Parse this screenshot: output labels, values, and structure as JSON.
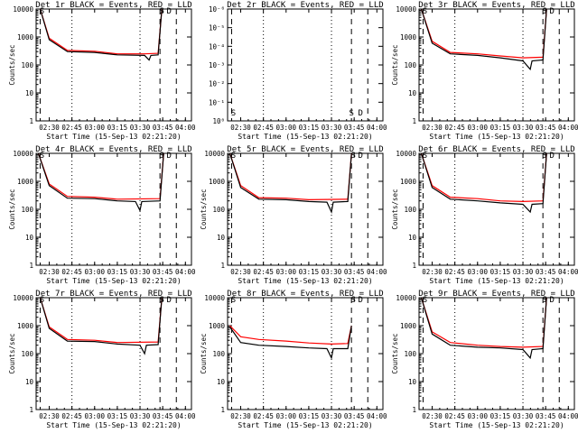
{
  "common": {
    "xlabel": "Start Time (15-Sep-13 02:21:20)",
    "ylabel": "Counts/sec",
    "xtick_labels": [
      "02:30",
      "02:45",
      "03:00",
      "03:15",
      "03:30",
      "03:45",
      "04:00"
    ],
    "ytick_labels_normal": [
      "1",
      "10",
      "100",
      "1000",
      "10000"
    ],
    "ytick_labels_det2": [
      "10⁰",
      "10⁻¹",
      "10⁻²",
      "10⁻³",
      "10⁻⁴",
      "10⁻⁵",
      "10⁻⁶"
    ],
    "colors": {
      "events": "#000000",
      "lld": "#ff0000"
    },
    "marker_labels": [
      "S",
      "D"
    ],
    "xlim": [
      "02:21:20",
      "04:04:00"
    ],
    "ylim_log": [
      1,
      10000
    ]
  },
  "panels": [
    {
      "title": "Det 1r BLACK = Events, RED = LLD",
      "yaxis": "normal",
      "show_ylabel": true
    },
    {
      "title": "Det 2r BLACK = Events, RED = LLD",
      "yaxis": "det2",
      "show_ylabel": false
    },
    {
      "title": "Det 3r BLACK = Events, RED = LLD",
      "yaxis": "normal",
      "show_ylabel": true
    },
    {
      "title": "Det 4r BLACK = Events, RED = LLD",
      "yaxis": "normal",
      "show_ylabel": true
    },
    {
      "title": "Det 5r BLACK = Events, RED = LLD",
      "yaxis": "normal",
      "show_ylabel": true
    },
    {
      "title": "Det 6r BLACK = Events, RED = LLD",
      "yaxis": "normal",
      "show_ylabel": true
    },
    {
      "title": "Det 7r BLACK = Events, RED = LLD",
      "yaxis": "normal",
      "show_ylabel": true
    },
    {
      "title": "Det 8r BLACK = Events, RED = LLD",
      "yaxis": "normal",
      "show_ylabel": true
    },
    {
      "title": "Det 9r BLACK = Events, RED = LLD",
      "yaxis": "normal",
      "show_ylabel": true
    }
  ],
  "chart_data": {
    "type": "line",
    "x_unit": "time (HH:MM)",
    "y_scale": "log",
    "series_names": [
      "Events",
      "LLD"
    ],
    "detectors": [
      {
        "id": "1r",
        "events": [
          [
            2.4,
            10000
          ],
          [
            2.5,
            800
          ],
          [
            2.7,
            300
          ],
          [
            3.0,
            280
          ],
          [
            3.25,
            230
          ],
          [
            3.55,
            220
          ],
          [
            3.6,
            150
          ],
          [
            3.62,
            220
          ],
          [
            3.7,
            230
          ],
          [
            3.74,
            10000
          ]
        ],
        "lld": [
          [
            2.4,
            10000
          ],
          [
            2.5,
            900
          ],
          [
            2.7,
            330
          ],
          [
            3.0,
            310
          ],
          [
            3.25,
            250
          ],
          [
            3.55,
            250
          ],
          [
            3.7,
            260
          ],
          [
            3.74,
            10000
          ]
        ]
      },
      {
        "id": "2r",
        "events": [],
        "lld": []
      },
      {
        "id": "3r",
        "events": [
          [
            2.38,
            10000
          ],
          [
            2.5,
            600
          ],
          [
            2.7,
            250
          ],
          [
            3.0,
            220
          ],
          [
            3.25,
            180
          ],
          [
            3.5,
            140
          ],
          [
            3.58,
            70
          ],
          [
            3.6,
            140
          ],
          [
            3.72,
            150
          ],
          [
            3.76,
            10000
          ]
        ],
        "lld": [
          [
            2.38,
            10000
          ],
          [
            2.5,
            700
          ],
          [
            2.7,
            280
          ],
          [
            3.0,
            250
          ],
          [
            3.25,
            210
          ],
          [
            3.5,
            180
          ],
          [
            3.72,
            190
          ],
          [
            3.76,
            10000
          ]
        ]
      },
      {
        "id": "4r",
        "events": [
          [
            2.38,
            10000
          ],
          [
            2.5,
            700
          ],
          [
            2.7,
            250
          ],
          [
            3.0,
            240
          ],
          [
            3.25,
            200
          ],
          [
            3.45,
            190
          ],
          [
            3.5,
            90
          ],
          [
            3.52,
            190
          ],
          [
            3.72,
            200
          ],
          [
            3.76,
            10000
          ]
        ],
        "lld": [
          [
            2.38,
            10000
          ],
          [
            2.5,
            800
          ],
          [
            2.7,
            290
          ],
          [
            3.0,
            270
          ],
          [
            3.25,
            230
          ],
          [
            3.72,
            240
          ],
          [
            3.76,
            10000
          ]
        ]
      },
      {
        "id": "5r",
        "events": [
          [
            2.38,
            10000
          ],
          [
            2.5,
            600
          ],
          [
            2.7,
            230
          ],
          [
            3.0,
            220
          ],
          [
            3.25,
            190
          ],
          [
            3.45,
            180
          ],
          [
            3.5,
            80
          ],
          [
            3.52,
            180
          ],
          [
            3.68,
            190
          ],
          [
            3.72,
            10000
          ]
        ],
        "lld": [
          [
            2.38,
            10000
          ],
          [
            2.5,
            700
          ],
          [
            2.7,
            260
          ],
          [
            3.0,
            250
          ],
          [
            3.25,
            220
          ],
          [
            3.68,
            230
          ],
          [
            3.72,
            10000
          ]
        ]
      },
      {
        "id": "6r",
        "events": [
          [
            2.38,
            10000
          ],
          [
            2.5,
            600
          ],
          [
            2.7,
            230
          ],
          [
            3.0,
            200
          ],
          [
            3.25,
            170
          ],
          [
            3.5,
            150
          ],
          [
            3.58,
            80
          ],
          [
            3.6,
            150
          ],
          [
            3.72,
            160
          ],
          [
            3.76,
            10000
          ]
        ],
        "lld": [
          [
            2.38,
            10000
          ],
          [
            2.5,
            700
          ],
          [
            2.7,
            270
          ],
          [
            3.0,
            240
          ],
          [
            3.25,
            200
          ],
          [
            3.5,
            190
          ],
          [
            3.72,
            200
          ],
          [
            3.76,
            10000
          ]
        ]
      },
      {
        "id": "7r",
        "events": [
          [
            2.4,
            10000
          ],
          [
            2.5,
            800
          ],
          [
            2.7,
            280
          ],
          [
            3.0,
            270
          ],
          [
            3.25,
            220
          ],
          [
            3.5,
            200
          ],
          [
            3.55,
            100
          ],
          [
            3.57,
            200
          ],
          [
            3.7,
            210
          ],
          [
            3.74,
            10000
          ]
        ],
        "lld": [
          [
            2.4,
            10000
          ],
          [
            2.5,
            900
          ],
          [
            2.7,
            320
          ],
          [
            3.0,
            300
          ],
          [
            3.25,
            250
          ],
          [
            3.7,
            260
          ],
          [
            3.74,
            10000
          ]
        ]
      },
      {
        "id": "8r",
        "events": [
          [
            2.38,
            900
          ],
          [
            2.5,
            250
          ],
          [
            2.7,
            200
          ],
          [
            3.0,
            180
          ],
          [
            3.25,
            160
          ],
          [
            3.45,
            150
          ],
          [
            3.5,
            70
          ],
          [
            3.52,
            150
          ],
          [
            3.68,
            150
          ],
          [
            3.72,
            1000
          ]
        ],
        "lld": [
          [
            2.38,
            1000
          ],
          [
            2.5,
            400
          ],
          [
            2.7,
            320
          ],
          [
            3.0,
            280
          ],
          [
            3.25,
            240
          ],
          [
            3.5,
            220
          ],
          [
            3.68,
            230
          ],
          [
            3.72,
            1000
          ]
        ]
      },
      {
        "id": "9r",
        "events": [
          [
            2.38,
            10000
          ],
          [
            2.5,
            500
          ],
          [
            2.7,
            200
          ],
          [
            3.0,
            170
          ],
          [
            3.25,
            160
          ],
          [
            3.5,
            140
          ],
          [
            3.58,
            70
          ],
          [
            3.6,
            140
          ],
          [
            3.72,
            150
          ],
          [
            3.76,
            10000
          ]
        ],
        "lld": [
          [
            2.38,
            10000
          ],
          [
            2.5,
            600
          ],
          [
            2.7,
            250
          ],
          [
            3.0,
            200
          ],
          [
            3.25,
            180
          ],
          [
            3.5,
            170
          ],
          [
            3.72,
            180
          ],
          [
            3.76,
            10000
          ]
        ]
      }
    ]
  }
}
